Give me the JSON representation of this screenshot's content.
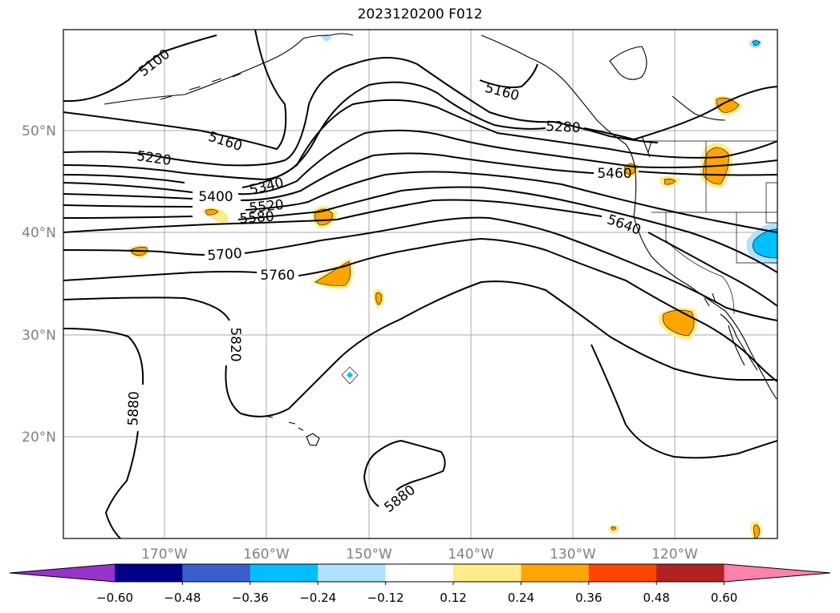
{
  "title": "2023120200 F012",
  "lat_labels": [
    "50°N",
    "40°N",
    "30°N",
    "20°N"
  ],
  "lon_labels": [
    "170°W",
    "160°W",
    "150°W",
    "140°W",
    "130°W",
    "120°W"
  ],
  "contour_labels": [
    "5100",
    "5160",
    "5160",
    "5220",
    "5280",
    "5340",
    "5400",
    "5460",
    "5520",
    "5580",
    "5640",
    "5700",
    "5760",
    "5820",
    "5880",
    "5880"
  ],
  "colorbar": {
    "colors": [
      "#9932cc",
      "#00008b",
      "#3a5fcd",
      "#00bfff",
      "#b0e2ff",
      "#ffffff",
      "#ffec8b",
      "#ffa500",
      "#ff4500",
      "#b22222",
      "#ff82ab"
    ],
    "ticks": [
      "−0.60",
      "−0.48",
      "−0.36",
      "−0.24",
      "−0.12",
      "0.12",
      "0.24",
      "0.36",
      "0.48",
      "0.60"
    ]
  },
  "colors": {
    "contour": "#000000",
    "grid": "#aaaaaa",
    "tick_label": "#808080",
    "positive": "#ffa500",
    "positive_light": "#ffec8b",
    "negative": "#00bfff",
    "negative_light": "#b0e2ff"
  }
}
